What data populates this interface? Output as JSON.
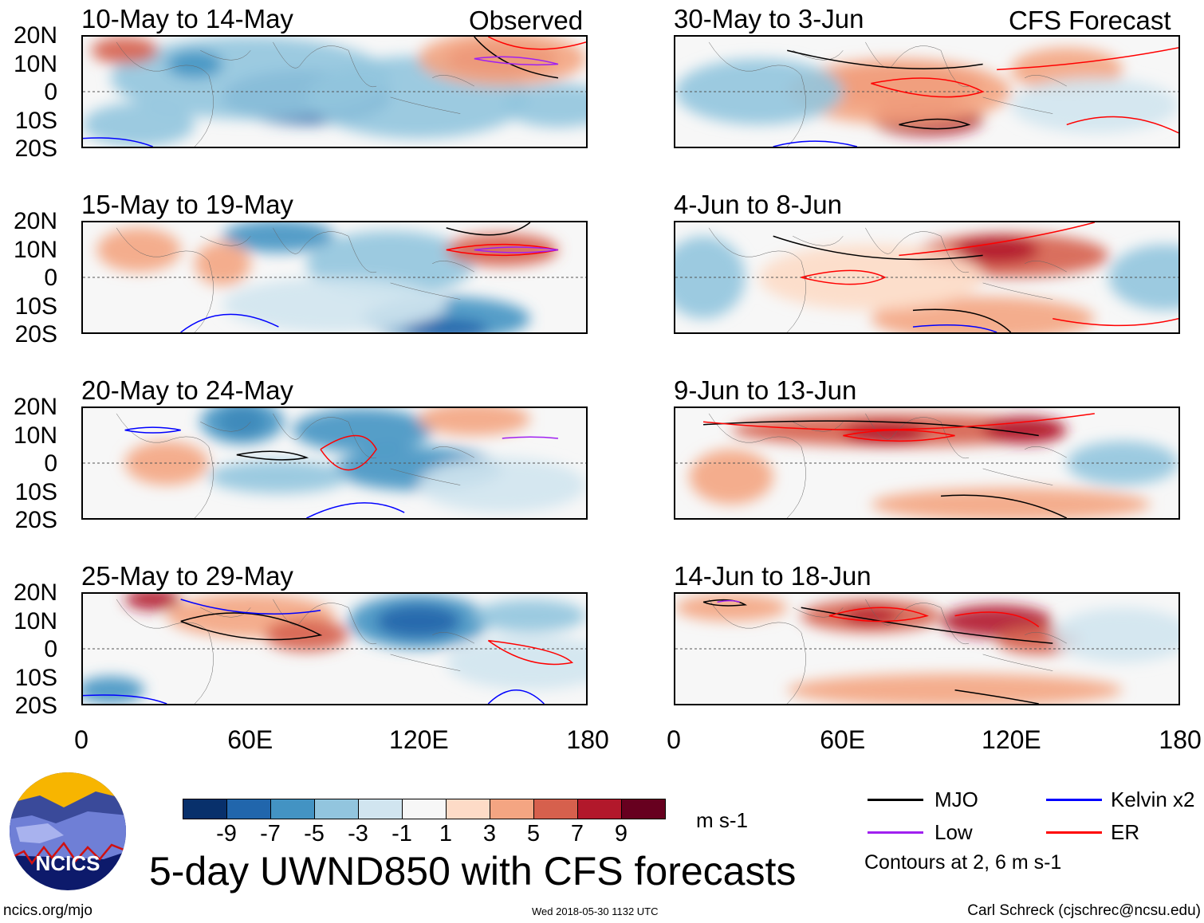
{
  "headers": {
    "observed": "Observed",
    "forecast": "CFS Forecast"
  },
  "panels": [
    {
      "title": "10-May to 14-May",
      "column": "observed"
    },
    {
      "title": "15-May to 19-May",
      "column": "observed"
    },
    {
      "title": "20-May to 24-May",
      "column": "observed"
    },
    {
      "title": "25-May to 29-May",
      "column": "observed"
    },
    {
      "title": "30-May to 3-Jun",
      "column": "forecast"
    },
    {
      "title": "4-Jun to 8-Jun",
      "column": "forecast"
    },
    {
      "title": "9-Jun to 13-Jun",
      "column": "forecast"
    },
    {
      "title": "14-Jun to 18-Jun",
      "column": "forecast"
    }
  ],
  "lat_labels": [
    "20N",
    "10N",
    "0",
    "10S",
    "20S"
  ],
  "lon_labels": [
    "0",
    "60E",
    "120E",
    "180"
  ],
  "colorbar": {
    "colors": [
      "#08306b",
      "#2166ac",
      "#4393c3",
      "#92c5de",
      "#d1e5f0",
      "#f7f7f7",
      "#fddbc7",
      "#f4a582",
      "#d6604d",
      "#b2182b",
      "#67001f"
    ],
    "labels": [
      "-9",
      "-7",
      "-5",
      "-3",
      "-1",
      "1",
      "3",
      "5",
      "7",
      "9"
    ],
    "units": "m s-1"
  },
  "legend": {
    "items": [
      {
        "label": "MJO",
        "color": "#000000"
      },
      {
        "label": "Kelvin x2",
        "color": "#0000ff"
      },
      {
        "label": "Low",
        "color": "#a020f0"
      },
      {
        "label": "ER",
        "color": "#ff0000"
      }
    ],
    "note": "Contours at 2, 6 m s-1"
  },
  "title": "5-day UWND850 with CFS forecasts",
  "logo_text": "NCICS",
  "footer": {
    "url": "ncics.org/mjo",
    "timestamp": "Wed 2018-05-30 1132 UTC",
    "credit": "Carl Schreck (cjschrec@ncsu.edu)"
  }
}
